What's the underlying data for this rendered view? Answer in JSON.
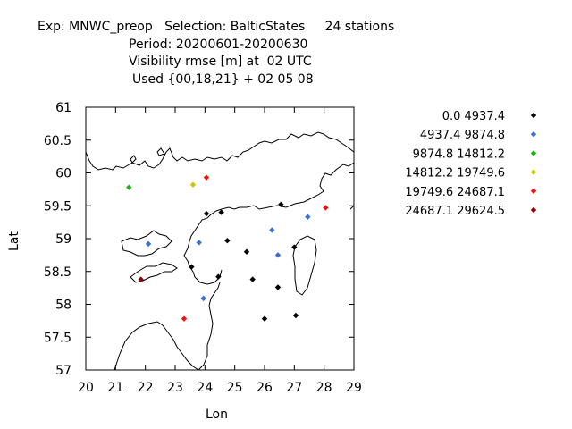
{
  "header": {
    "line1": "Exp: MNWC_preop   Selection: BalticStates     24 stations",
    "line2": "Period: 20200601-20200630",
    "line3": "Visibility rmse [m] at  02 UTC",
    "line4": "Used {00,18,21} + 02 05 08"
  },
  "chart_data": {
    "type": "scatter",
    "xlabel": "Lon",
    "ylabel": "Lat",
    "xlim": [
      20,
      29
    ],
    "ylim": [
      57,
      61
    ],
    "x_ticks": [
      "20",
      "21",
      "22",
      "23",
      "24",
      "25",
      "26",
      "27",
      "28",
      "29"
    ],
    "y_ticks": [
      "57",
      "57.5",
      "58",
      "58.5",
      "59",
      "59.5",
      "60",
      "60.5",
      "61"
    ],
    "legend_placement": "right",
    "series": [
      {
        "name": "0.0 4937.4",
        "color": "#000000",
        "points": [
          [
            24.05,
            59.38
          ],
          [
            24.55,
            59.4
          ],
          [
            26.55,
            59.52
          ],
          [
            24.75,
            58.97
          ],
          [
            25.4,
            58.8
          ],
          [
            27.0,
            58.87
          ],
          [
            24.45,
            58.42
          ],
          [
            23.55,
            58.57
          ],
          [
            25.6,
            58.38
          ],
          [
            26.45,
            58.26
          ],
          [
            26.0,
            57.78
          ],
          [
            27.05,
            57.83
          ]
        ]
      },
      {
        "name": "4937.4 9874.8",
        "color": "#3b6fd4",
        "points": [
          [
            22.1,
            58.92
          ],
          [
            23.8,
            58.94
          ],
          [
            26.25,
            59.13
          ],
          [
            26.45,
            58.75
          ],
          [
            27.45,
            59.33
          ],
          [
            23.95,
            58.09
          ]
        ]
      },
      {
        "name": "9874.8 14812.2",
        "color": "#19b019",
        "points": [
          [
            21.45,
            59.78
          ]
        ]
      },
      {
        "name": "14812.2 19749.6",
        "color": "#c8c800",
        "points": [
          [
            23.6,
            59.82
          ]
        ]
      },
      {
        "name": "19749.6 24687.1",
        "color": "#ee1111",
        "points": [
          [
            24.05,
            59.93
          ],
          [
            28.05,
            59.47
          ],
          [
            23.3,
            57.78
          ]
        ]
      },
      {
        "name": "24687.1 29624.5",
        "color": "#8b0000",
        "points": [
          [
            21.85,
            58.38
          ]
        ]
      }
    ]
  }
}
